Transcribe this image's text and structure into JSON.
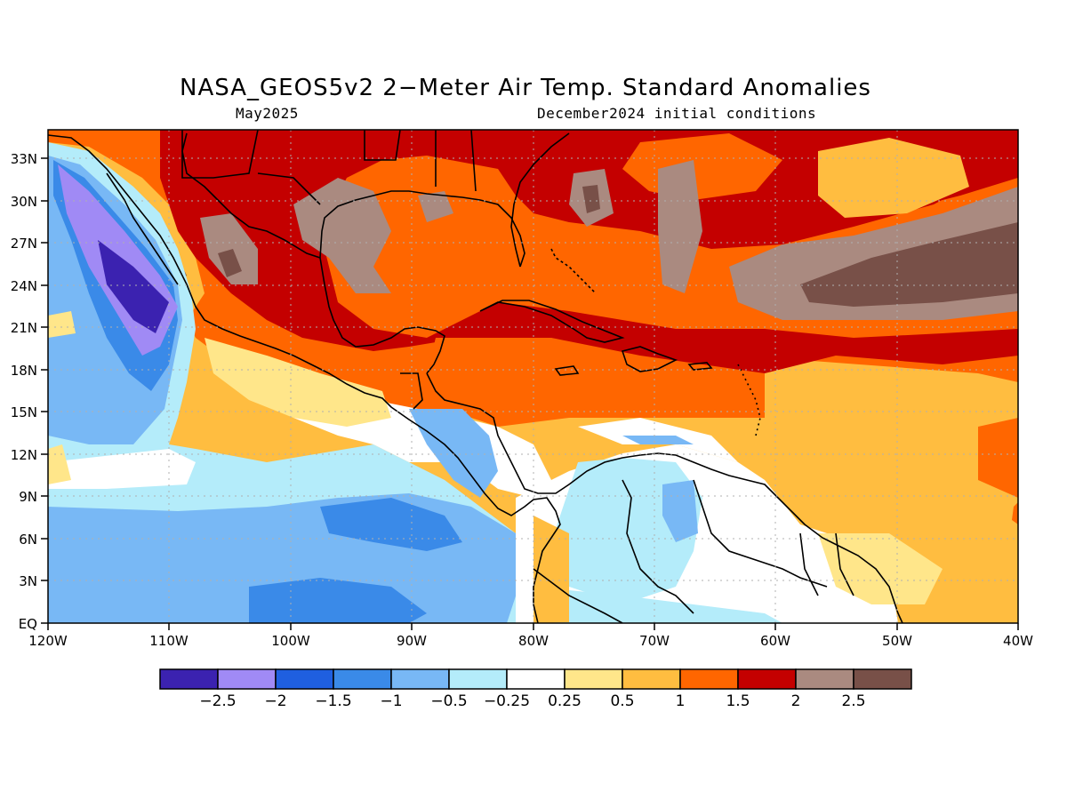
{
  "title": "NASA_GEOS5v2 2−Meter Air Temp. Standard Anomalies",
  "subtitle_left": "May2025",
  "subtitle_right": "December2024 initial conditions",
  "map": {
    "lat_labels": [
      "33N",
      "30N",
      "27N",
      "24N",
      "21N",
      "18N",
      "15N",
      "12N",
      "9N",
      "6N",
      "3N",
      "EQ"
    ],
    "lon_labels": [
      "120W",
      "110W",
      "100W",
      "90W",
      "80W",
      "70W",
      "60W",
      "50W",
      "40W"
    ]
  },
  "colorbar": {
    "colors": [
      "#3b22b0",
      "#a08af5",
      "#1f5fe0",
      "#3a8ae8",
      "#78b8f5",
      "#b4ecfa",
      "#ffffff",
      "#ffe68a",
      "#ffbd40",
      "#ff6600",
      "#c40000",
      "#aa8a80",
      "#785048"
    ],
    "labels": [
      "−2.5",
      "−2",
      "−1.5",
      "−1",
      "−0.5",
      "−0.25",
      "0.25",
      "0.5",
      "1",
      "1.5",
      "2",
      "2.5"
    ]
  }
}
